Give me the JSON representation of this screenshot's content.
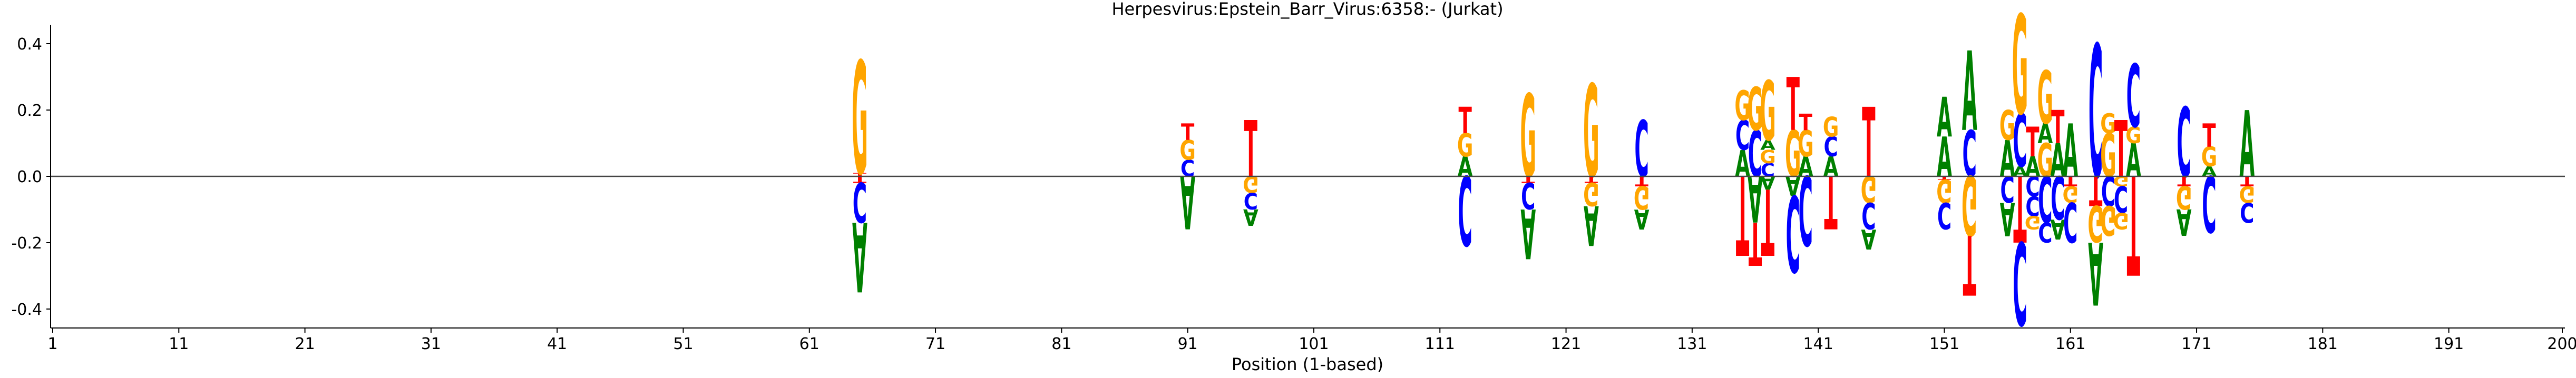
{
  "chart_data": {
    "type": "sequence-logo",
    "title": "Herpesvirus:Epstein_Barr_Virus:6358:-  (Jurkat)",
    "xlabel": "Position (1-based)",
    "ylabel": "",
    "xlim": [
      1,
      200
    ],
    "ylim": [
      -0.45,
      0.45
    ],
    "x_ticks": [
      1,
      11,
      21,
      31,
      41,
      51,
      61,
      71,
      81,
      91,
      101,
      111,
      121,
      131,
      141,
      151,
      161,
      171,
      181,
      191,
      200
    ],
    "y_ticks": [
      -0.4,
      -0.2,
      0.0,
      0.2,
      0.4
    ],
    "colors": {
      "A": "#008000",
      "C": "#0000ff",
      "G": "#ffa500",
      "T": "#ff0000"
    },
    "positions": [
      {
        "pos": 65,
        "up": [
          [
            "T",
            0.01
          ],
          [
            "G",
            0.34
          ]
        ],
        "down": [
          [
            "T",
            0.02
          ],
          [
            "C",
            0.12
          ],
          [
            "A",
            0.21
          ]
        ]
      },
      {
        "pos": 91,
        "up": [
          [
            "C",
            0.05
          ],
          [
            "G",
            0.06
          ],
          [
            "T",
            0.05
          ]
        ],
        "down": [
          [
            "A",
            0.16
          ]
        ]
      },
      {
        "pos": 96,
        "up": [
          [
            "T",
            0.17
          ]
        ],
        "down": [
          [
            "G",
            0.05
          ],
          [
            "C",
            0.05
          ],
          [
            "A",
            0.05
          ]
        ]
      },
      {
        "pos": 113,
        "up": [
          [
            "A",
            0.06
          ],
          [
            "G",
            0.07
          ],
          [
            "T",
            0.08
          ]
        ],
        "down": [
          [
            "C",
            0.21
          ]
        ]
      },
      {
        "pos": 118,
        "up": [
          [
            "G",
            0.25
          ]
        ],
        "down": [
          [
            "T",
            0.02
          ],
          [
            "C",
            0.08
          ],
          [
            "A",
            0.15
          ]
        ]
      },
      {
        "pos": 123,
        "up": [
          [
            "G",
            0.28
          ]
        ],
        "down": [
          [
            "T",
            0.02
          ],
          [
            "G",
            0.07
          ],
          [
            "A",
            0.12
          ]
        ]
      },
      {
        "pos": 127,
        "up": [
          [
            "C",
            0.17
          ]
        ],
        "down": [
          [
            "T",
            0.03
          ],
          [
            "G",
            0.07
          ],
          [
            "A",
            0.06
          ]
        ]
      },
      {
        "pos": 135,
        "up": [
          [
            "A",
            0.08
          ],
          [
            "C",
            0.09
          ],
          [
            "G",
            0.09
          ]
        ],
        "down": [
          [
            "T",
            0.24
          ]
        ]
      },
      {
        "pos": 136,
        "up": [
          [
            "C",
            0.14
          ],
          [
            "G",
            0.13
          ]
        ],
        "down": [
          [
            "A",
            0.14
          ],
          [
            "T",
            0.13
          ]
        ]
      },
      {
        "pos": 137,
        "up": [
          [
            "C",
            0.04
          ],
          [
            "G",
            0.04
          ],
          [
            "A",
            0.03
          ],
          [
            "G",
            0.18
          ]
        ],
        "down": [
          [
            "A",
            0.04
          ],
          [
            "T",
            0.2
          ]
        ]
      },
      {
        "pos": 139,
        "up": [
          [
            "G",
            0.14
          ],
          [
            "T",
            0.16
          ]
        ],
        "down": [
          [
            "A",
            0.06
          ],
          [
            "C",
            0.23
          ]
        ]
      },
      {
        "pos": 140,
        "up": [
          [
            "A",
            0.06
          ],
          [
            "G",
            0.08
          ],
          [
            "T",
            0.05
          ]
        ],
        "down": [
          [
            "C",
            0.21
          ]
        ]
      },
      {
        "pos": 142,
        "up": [
          [
            "A",
            0.06
          ],
          [
            "C",
            0.06
          ],
          [
            "G",
            0.06
          ]
        ],
        "down": [
          [
            "T",
            0.16
          ]
        ]
      },
      {
        "pos": 145,
        "up": [
          [
            "T",
            0.21
          ]
        ],
        "down": [
          [
            "G",
            0.08
          ],
          [
            "C",
            0.08
          ],
          [
            "A",
            0.06
          ]
        ]
      },
      {
        "pos": 151,
        "up": [
          [
            "A",
            0.12
          ],
          [
            "A",
            0.12
          ]
        ],
        "down": [
          [
            "T",
            0.01
          ],
          [
            "G",
            0.07
          ],
          [
            "C",
            0.08
          ]
        ]
      },
      {
        "pos": 153,
        "up": [
          [
            "C",
            0.14
          ],
          [
            "A",
            0.24
          ]
        ],
        "down": [
          [
            "G",
            0.18
          ],
          [
            "T",
            0.18
          ]
        ]
      },
      {
        "pos": 156,
        "up": [
          [
            "A",
            0.11
          ],
          [
            "G",
            0.09
          ]
        ],
        "down": [
          [
            "C",
            0.08
          ],
          [
            "A",
            0.1
          ]
        ]
      },
      {
        "pos": 157,
        "up": [
          [
            "A",
            0.03
          ],
          [
            "C",
            0.16
          ],
          [
            "G",
            0.3
          ]
        ],
        "down": [
          [
            "T",
            0.2
          ],
          [
            "C",
            0.25
          ]
        ]
      },
      {
        "pos": 158,
        "up": [
          [
            "A",
            0.06
          ],
          [
            "T",
            0.09
          ]
        ],
        "down": [
          [
            "C",
            0.06
          ],
          [
            "C",
            0.06
          ],
          [
            "G",
            0.04
          ]
        ]
      },
      {
        "pos": 159,
        "up": [
          [
            "G",
            0.1
          ],
          [
            "A",
            0.06
          ],
          [
            "G",
            0.16
          ]
        ],
        "down": [
          [
            "C",
            0.14
          ],
          [
            "C",
            0.06
          ]
        ]
      },
      {
        "pos": 160,
        "up": [
          [
            "A",
            0.1
          ],
          [
            "T",
            0.1
          ]
        ],
        "down": [
          [
            "C",
            0.13
          ],
          [
            "A",
            0.06
          ]
        ]
      },
      {
        "pos": 161,
        "up": [
          [
            "A",
            0.16
          ]
        ],
        "down": [
          [
            "T",
            0.03
          ],
          [
            "G",
            0.05
          ],
          [
            "C",
            0.12
          ]
        ]
      },
      {
        "pos": 163,
        "up": [
          [
            "C",
            0.4
          ]
        ],
        "down": [
          [
            "T",
            0.09
          ],
          [
            "G",
            0.11
          ],
          [
            "A",
            0.19
          ]
        ]
      },
      {
        "pos": 164,
        "up": [
          [
            "G",
            0.13
          ],
          [
            "G",
            0.06
          ]
        ],
        "down": [
          [
            "C",
            0.09
          ],
          [
            "G",
            0.09
          ]
        ]
      },
      {
        "pos": 165,
        "up": [
          [
            "T",
            0.17
          ]
        ],
        "down": [
          [
            "G",
            0.03
          ],
          [
            "C",
            0.08
          ],
          [
            "G",
            0.05
          ]
        ]
      },
      {
        "pos": 166,
        "up": [
          [
            "A",
            0.1
          ],
          [
            "G",
            0.05
          ],
          [
            "C",
            0.19
          ]
        ],
        "down": [
          [
            "T",
            0.3
          ]
        ]
      },
      {
        "pos": 170,
        "up": [
          [
            "C",
            0.21
          ]
        ],
        "down": [
          [
            "T",
            0.03
          ],
          [
            "G",
            0.07
          ],
          [
            "A",
            0.08
          ]
        ]
      },
      {
        "pos": 172,
        "up": [
          [
            "A",
            0.03
          ],
          [
            "G",
            0.06
          ],
          [
            "T",
            0.07
          ]
        ],
        "down": [
          [
            "C",
            0.17
          ]
        ]
      },
      {
        "pos": 175,
        "up": [
          [
            "A",
            0.2
          ]
        ],
        "down": [
          [
            "T",
            0.03
          ],
          [
            "G",
            0.05
          ],
          [
            "C",
            0.06
          ]
        ]
      }
    ]
  }
}
